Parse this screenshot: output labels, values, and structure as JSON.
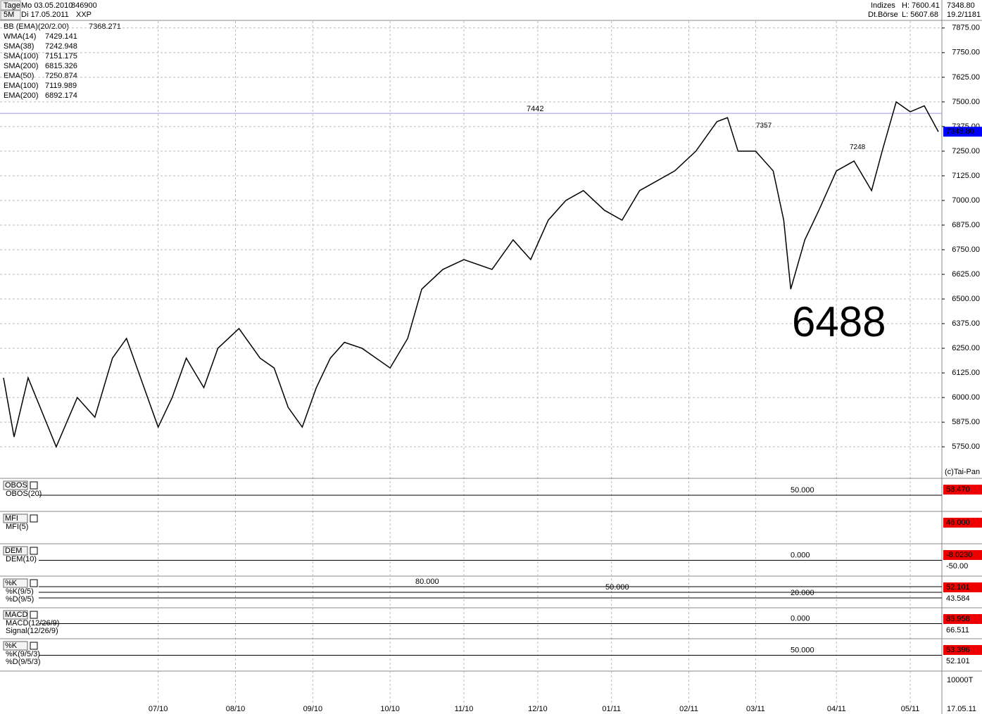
{
  "header": {
    "period": "Tage",
    "range_from": "Mo 03.05.2010",
    "range_to": "Di 17.05.2011",
    "timeframe": "5M",
    "wkn": "846900",
    "symbol": "XXP",
    "market": "Indizes",
    "exchange": "Dt.Börse",
    "high": "H: 7600.41",
    "low": "L: 5607.68",
    "last": "7348.80",
    "scale": "19.2/1181"
  },
  "indicators": [
    {
      "label": "BB (EMA)(20/2.00)",
      "value": 7368.271,
      "color": "#0000cc"
    },
    {
      "label": "WMA(14)",
      "value": 7429.141,
      "color": "#336699"
    },
    {
      "label": "SMA(38)",
      "value": 7242.948,
      "color": "#e08020"
    },
    {
      "label": "SMA(100)",
      "value": 7151.175,
      "color": "#800000"
    },
    {
      "label": "SMA(200)",
      "value": 6815.326,
      "color": "#0000aa"
    },
    {
      "label": "EMA(50)",
      "value": 7250.874,
      "color": "#80e0e0"
    },
    {
      "label": "EMA(100)",
      "value": 7119.989,
      "color": "#e000e0"
    },
    {
      "label": "EMA(200)",
      "value": 6892.174,
      "color": "#004000"
    }
  ],
  "chart_data": {
    "type": "line",
    "x": [
      1,
      4,
      8,
      16,
      22,
      27,
      32,
      36,
      41,
      45,
      49,
      53,
      58,
      62,
      68,
      74,
      78,
      82,
      86,
      90,
      94,
      98,
      103,
      111,
      116,
      120,
      126,
      132,
      140,
      146,
      151,
      156,
      161,
      166,
      172,
      177,
      182,
      187,
      192,
      198,
      204,
      207,
      210,
      215,
      220,
      223,
      225,
      229,
      233,
      238,
      243,
      248,
      251,
      255,
      259,
      263,
      267
    ],
    "series": [
      {
        "color": "#000000",
        "values": [
          6100,
          5800,
          6100,
          5750,
          6000,
          5900,
          6200,
          6300,
          6050,
          5850,
          6000,
          6200,
          6050,
          6250,
          6350,
          6200,
          6150,
          5950,
          5850,
          6050,
          6200,
          6280,
          6250,
          6150,
          6300,
          6550,
          6650,
          6700,
          6650,
          6800,
          6700,
          6900,
          7000,
          7050,
          6950,
          6900,
          7050,
          7100,
          7150,
          7250,
          7400,
          7420,
          7250,
          7250,
          7150,
          6900,
          6550,
          6800,
          6950,
          7150,
          7200,
          7050,
          7250,
          7500,
          7450,
          7480,
          7348.8
        ]
      }
    ],
    "xlim": [
      0,
      268
    ],
    "xticks": [
      {
        "value": 45,
        "label": "07/10"
      },
      {
        "value": 67,
        "label": "08/10"
      },
      {
        "value": 89,
        "label": "09/10"
      },
      {
        "value": 111,
        "label": "10/10"
      },
      {
        "value": 132,
        "label": "11/10"
      },
      {
        "value": 153,
        "label": "12/10"
      },
      {
        "value": 174,
        "label": "01/11"
      },
      {
        "value": 196,
        "label": "02/11"
      },
      {
        "value": 215,
        "label": "03/11"
      },
      {
        "value": 238,
        "label": "04/11"
      },
      {
        "value": 259,
        "label": "05/11"
      }
    ],
    "ylim": [
      5590,
      7910
    ],
    "yticks": [
      {
        "value": 5750,
        "label": "5750.00"
      },
      {
        "value": 5875,
        "label": "5875.00"
      },
      {
        "value": 6000,
        "label": "6000.00"
      },
      {
        "value": 6125,
        "label": "6125.00"
      },
      {
        "value": 6250,
        "label": "6250.00"
      },
      {
        "value": 6375,
        "label": "6375.00"
      },
      {
        "value": 6500,
        "label": "6500.00"
      },
      {
        "value": 6625,
        "label": "6625.00"
      },
      {
        "value": 6750,
        "label": "6750.00"
      },
      {
        "value": 6875,
        "label": "6875.00"
      },
      {
        "value": 7000,
        "label": "7000.00"
      },
      {
        "value": 7125,
        "label": "7125.00"
      },
      {
        "value": 7250,
        "label": "7250.00"
      },
      {
        "value": 7375,
        "label": "7375.00"
      },
      {
        "value": 7500,
        "label": "7500.00"
      },
      {
        "value": 7625,
        "label": "7625.00"
      },
      {
        "value": 7750,
        "label": "7750.00"
      },
      {
        "value": 7875,
        "label": "7875.00"
      }
    ],
    "grid": true,
    "reference_line": 7442,
    "annotations": [
      7357,
      7248,
      6488
    ],
    "last_price": {
      "value": 7348.8,
      "label": "7348.80"
    },
    "copyright": "(c)Tai-Pan"
  },
  "panels": [
    {
      "name": "OBOS",
      "params": [
        "OBOS(20)"
      ],
      "levels": [
        "50.000"
      ],
      "readouts": [
        "58.470"
      ]
    },
    {
      "name": "MFI",
      "params": [
        "MFI(5)"
      ],
      "levels": [],
      "readouts": [
        "46.000"
      ]
    },
    {
      "name": "DEM",
      "params": [
        "DEM(10)"
      ],
      "levels": [
        "0.000"
      ],
      "readouts": [
        "-8.0230",
        "-50.00"
      ]
    },
    {
      "name": "%K",
      "params": [
        "%K(9/5)",
        "%D(9/5)"
      ],
      "levels": [
        "80.000",
        "50.000",
        "20.000"
      ],
      "readouts": [
        "52.101",
        "43.584"
      ]
    },
    {
      "name": "MACD",
      "params": [
        "MACD(12/26/9)",
        "Signal(12/26/9)"
      ],
      "levels": [
        "0.000"
      ],
      "readouts": [
        "85.958",
        "66.511"
      ]
    },
    {
      "name": "%K",
      "params": [
        "%K(9/5/3)",
        "%D(9/5/3)"
      ],
      "levels": [
        "50.000"
      ],
      "readouts": [
        "53.396",
        "52.101"
      ]
    }
  ],
  "volume": {
    "scale": "10000T",
    "date": "17.05.11"
  }
}
